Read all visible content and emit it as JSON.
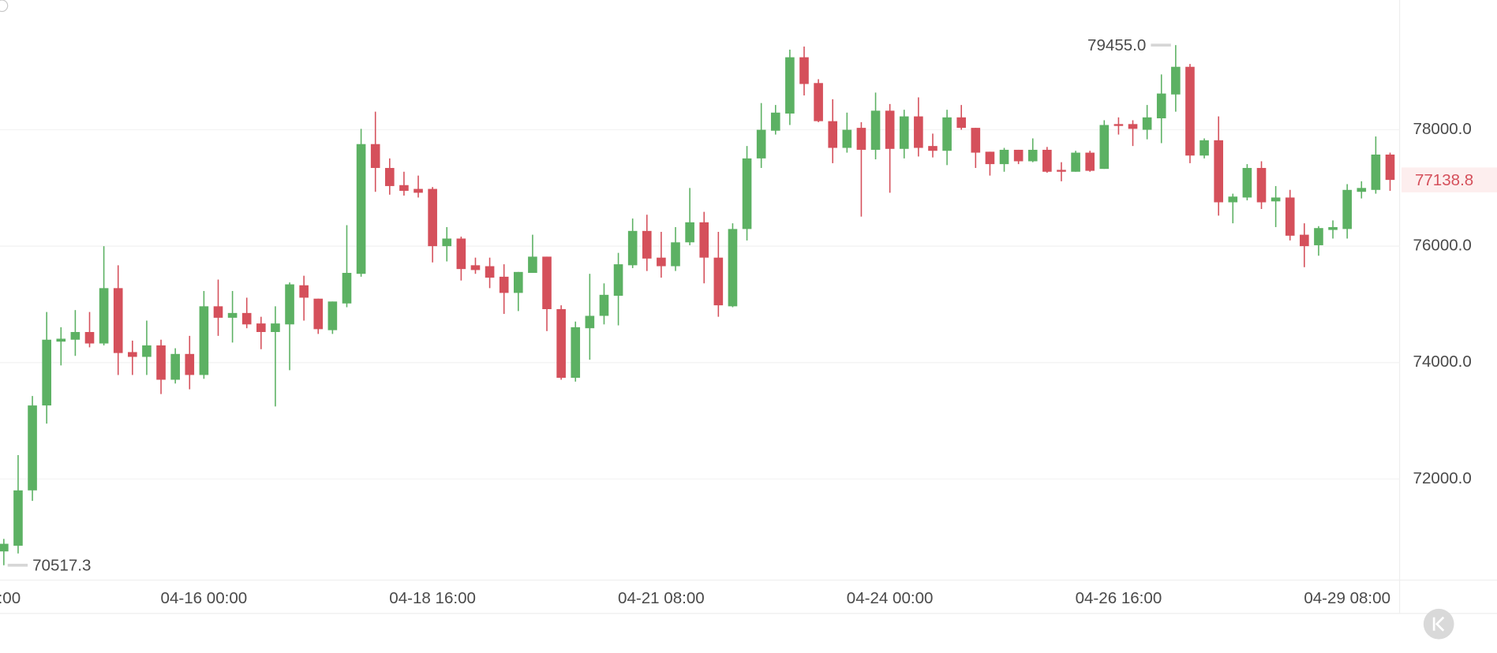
{
  "chart_data": {
    "type": "candlestick",
    "categories": [
      null,
      null,
      null,
      null,
      null,
      null,
      null,
      null,
      null,
      null,
      null,
      null,
      null,
      null,
      "04-16 00:00",
      null,
      null,
      null,
      null,
      null,
      null,
      null,
      null,
      null,
      null,
      null,
      null,
      null,
      null,
      null,
      "04-18 16:00",
      null,
      null,
      null,
      null,
      null,
      null,
      null,
      null,
      null,
      null,
      null,
      null,
      null,
      null,
      null,
      "04-21 08:00",
      null,
      null,
      null,
      null,
      null,
      null,
      null,
      null,
      null,
      null,
      null,
      null,
      null,
      null,
      null,
      "04-24 00:00",
      null,
      null,
      null,
      null,
      null,
      null,
      null,
      null,
      null,
      null,
      null,
      null,
      null,
      null,
      null,
      "04-26 16:00",
      null,
      null,
      null,
      null,
      null,
      null,
      null,
      null,
      null,
      null,
      null,
      null,
      null,
      null,
      null,
      "04-29 08:00",
      null,
      null,
      null
    ],
    "left_edge_label": ":00",
    "open": [
      70755,
      70853,
      71804,
      73263,
      74360,
      74393,
      74525,
      74328,
      75279,
      74180,
      74098,
      74295,
      73705,
      74148,
      73787,
      74967,
      74770,
      74852,
      74672,
      74525,
      74656,
      75328,
      75098,
      74557,
      75016,
      75525,
      77754,
      77344,
      77049,
      76984,
      76984,
      76000,
      76131,
      75672,
      75656,
      75475,
      75197,
      75541,
      75820,
      74918,
      73738,
      74590,
      74803,
      75148,
      75672,
      76262,
      75803,
      75656,
      76066,
      76410,
      75803,
      74967,
      76295,
      77508,
      77984,
      78279,
      79246,
      78803,
      78148,
      77689,
      78033,
      77656,
      78328,
      77672,
      78230,
      77721,
      77639,
      78213,
      78033,
      77623,
      77410,
      77656,
      77459,
      77656,
      77311,
      77279,
      77607,
      77328,
      78098,
      78098,
      78000,
      78197,
      78607,
      79082,
      77557,
      77820,
      76754,
      76836,
      77344,
      76770,
      76836,
      76197,
      76016,
      76279,
      76295,
      76934,
      76967,
      77574
    ],
    "high": [
      70970,
      72410,
      73426,
      74869,
      74607,
      74902,
      74869,
      76000,
      75672,
      74377,
      74721,
      74393,
      74246,
      74459,
      75230,
      75426,
      75230,
      75115,
      74787,
      74967,
      75377,
      75492,
      75098,
      75049,
      76361,
      78016,
      78311,
      77508,
      77279,
      77213,
      77016,
      76328,
      76164,
      75803,
      75803,
      75689,
      75557,
      76197,
      75820,
      74984,
      74705,
      75525,
      75361,
      75885,
      76475,
      76541,
      76246,
      76328,
      77000,
      76590,
      76246,
      76393,
      77721,
      78459,
      78426,
      79377,
      79430,
      78869,
      78525,
      78295,
      78131,
      78639,
      78443,
      78344,
      78557,
      77934,
      78344,
      78426,
      78033,
      77623,
      77689,
      77656,
      77852,
      77705,
      77443,
      77639,
      77639,
      78164,
      78213,
      78164,
      78426,
      78951,
      79455,
      79131,
      77852,
      78230,
      76902,
      77410,
      77459,
      77033,
      76967,
      76393,
      76344,
      76443,
      77066,
      77115,
      77885,
      77607
    ],
    "low": [
      70517.3,
      70720,
      71623,
      72951,
      73951,
      74115,
      74262,
      74295,
      73787,
      73787,
      73787,
      73459,
      73640,
      73541,
      73721,
      74459,
      74344,
      74590,
      74230,
      73246,
      73869,
      74721,
      74492,
      74492,
      74951,
      75475,
      76934,
      76885,
      76869,
      76836,
      75721,
      75738,
      75410,
      75525,
      75279,
      74836,
      74885,
      75541,
      74541,
      73705,
      73672,
      74049,
      74656,
      74639,
      75623,
      75574,
      75459,
      75574,
      76016,
      75361,
      74787,
      74951,
      76098,
      77344,
      77918,
      78082,
      78590,
      78131,
      77426,
      77607,
      76508,
      77492,
      76918,
      77508,
      77541,
      77525,
      77393,
      78000,
      77344,
      77213,
      77279,
      77410,
      77443,
      77262,
      77115,
      77279,
      77279,
      77328,
      77918,
      77721,
      77836,
      77770,
      78311,
      77426,
      77508,
      76525,
      76393,
      76787,
      76639,
      76328,
      76098,
      75639,
      75836,
      76131,
      76131,
      76820,
      76902,
      76951
    ],
    "close": [
      70886,
      71804,
      73263,
      74393,
      74410,
      74525,
      74328,
      75279,
      74164,
      74098,
      74295,
      73705,
      74148,
      73787,
      74967,
      74770,
      74852,
      74656,
      74525,
      74672,
      75344,
      75115,
      74574,
      75049,
      75541,
      77754,
      77344,
      77033,
      76951,
      76918,
      76000,
      76131,
      75607,
      75590,
      75459,
      75197,
      75557,
      75820,
      74918,
      73738,
      74607,
      74803,
      75164,
      75689,
      76262,
      75787,
      75656,
      76066,
      76410,
      75803,
      74984,
      76295,
      77508,
      78000,
      78295,
      79246,
      78787,
      78148,
      77689,
      78000,
      77656,
      78328,
      77672,
      78230,
      77689,
      77639,
      78213,
      78033,
      77607,
      77410,
      77656,
      77459,
      77656,
      77279,
      77279,
      77607,
      77295,
      78082,
      78066,
      78016,
      78213,
      78623,
      79082,
      77557,
      77820,
      76754,
      76852,
      77344,
      76754,
      76836,
      76180,
      76000,
      76311,
      76328,
      76967,
      77000,
      77574,
      77138.8
    ],
    "up_color": "#5cb163",
    "down_color": "#d5505b",
    "max_label": "79455.0",
    "min_label": "70517.3",
    "last_label": "77138.8",
    "ylim": [
      70262,
      80230
    ],
    "yticks": [
      {
        "value": 72000,
        "label": "72000.0"
      },
      {
        "value": 74000,
        "label": "74000.0"
      },
      {
        "value": 76000,
        "label": "76000.0"
      },
      {
        "value": 78000,
        "label": "78000.0"
      }
    ],
    "grid": true
  }
}
